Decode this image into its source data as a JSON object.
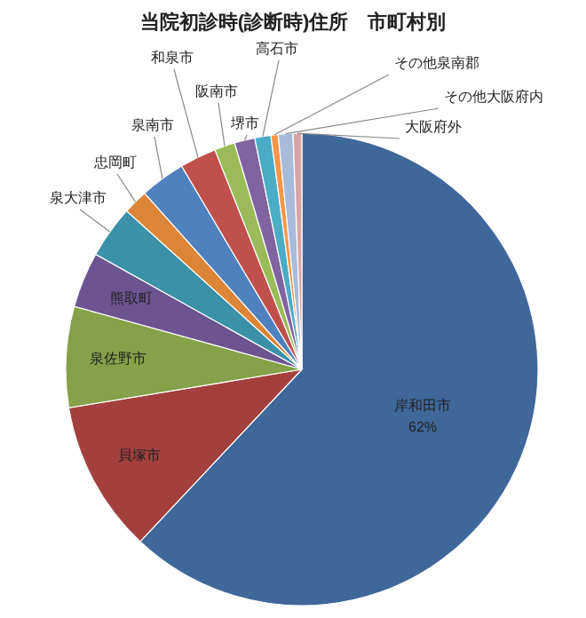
{
  "chart_data": {
    "type": "pie",
    "title": "当院初診時(診断時)住所　市町村別",
    "categories": [
      "岸和田市",
      "貝塚市",
      "泉佐野市",
      "熊取町",
      "泉大津市",
      "忠岡町",
      "泉南市",
      "和泉市",
      "阪南市",
      "堺市",
      "高石市",
      "その他泉南郡",
      "その他大阪府内",
      "大阪府外"
    ],
    "values": [
      62,
      10.4,
      6.9,
      3.8,
      3.6,
      1.7,
      3.1,
      2.5,
      1.4,
      1.4,
      1.1,
      0.5,
      1.0,
      0.6
    ],
    "colors": [
      "#3f679a",
      "#a3403d",
      "#86a14a",
      "#6b5490",
      "#3a91a8",
      "#dd8537",
      "#4f81bd",
      "#c0504d",
      "#9bbb59",
      "#8064a2",
      "#4bacc6",
      "#f79646",
      "#a9bbdb",
      "#d9a5a4"
    ],
    "value_labels": [
      "62%",
      null,
      null,
      null,
      null,
      null,
      null,
      null,
      null,
      null,
      null,
      null,
      null,
      null
    ]
  }
}
